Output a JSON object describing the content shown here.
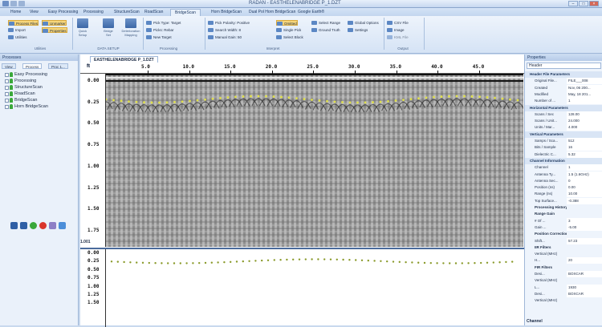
{
  "window": {
    "title": "RADAN - EASTHELENABRIDGE P_1.DZT"
  },
  "tabs": [
    "Home",
    "View",
    "Easy Processing",
    "Processing",
    "StructureScan",
    "RoadScan",
    "BridgeScan",
    "Horn BridgeScan",
    "Dual Pol Horn BridgeScan",
    "Google Earth®"
  ],
  "active_tab": "BridgeScan",
  "ribbon": {
    "file_group": {
      "items": [
        "Process Files",
        "Unmarker",
        "Import",
        "Properties",
        "Utilities"
      ],
      "label": "Utilities"
    },
    "data_setup": {
      "items": [
        "Quick Setup",
        "Bridge Set",
        "Deterioration Mapping"
      ],
      "label": "DATA SETUP"
    },
    "processing_group": {
      "items": [
        "Pick Type: Target",
        "Picks: Rebar",
        "New Target"
      ],
      "label": "Processing"
    },
    "picking_group": {
      "items": [
        "Pick Polarity: Positive",
        "Search Width: 8",
        "Manual Gain: 50",
        "Omitted",
        "Single Pick",
        "Select Block",
        "Select Range",
        "Ground Truth",
        "Global Options",
        "Settings",
        "CSV File",
        "Image",
        "KML File"
      ],
      "label": "Interpret",
      "label2": "Output"
    }
  },
  "left_panel": {
    "title": "Processes",
    "tabs": [
      "View",
      "Process",
      "Proc 1..."
    ],
    "tree": [
      "Easy Processing",
      "Processing",
      "StructureScan",
      "RoadScan",
      "BridgeScan",
      "Horn BridgeScan"
    ]
  },
  "document_tab": "EASTHELENABRIDGE P_1.DZT",
  "ruler": {
    "unit": "ft",
    "ticks": [
      "5.0",
      "10.0",
      "15.0",
      "20.0",
      "25.0",
      "30.0",
      "35.0",
      "40.0",
      "45.0"
    ]
  },
  "y_ticks": [
    "0.00",
    "0.25",
    "0.50",
    "0.75",
    "1.00",
    "1.25",
    "1.50",
    "1.75"
  ],
  "y_unit": "ft",
  "bottom_value": "1.001",
  "lower_y_ticks": [
    "0.00",
    "0.25",
    "0.50",
    "0.75",
    "1.00",
    "1.25",
    "1.50"
  ],
  "properties": {
    "title": "Properties",
    "dropdown": "Header",
    "rows": [
      {
        "type": "section",
        "k": "Header File Parameters"
      },
      {
        "k": "Original File...",
        "v": "FILE___008"
      },
      {
        "k": "Created",
        "v": "Nov, 06 200..."
      },
      {
        "k": "Modified",
        "v": "May, 18 201..."
      },
      {
        "k": "Number of ...",
        "v": "1"
      },
      {
        "type": "section",
        "k": "Horizontal Parameters"
      },
      {
        "k": "Scans / Sec",
        "v": "128.00"
      },
      {
        "k": "Scans / Unit...",
        "v": "24.000"
      },
      {
        "k": "Units / Mar...",
        "v": "4.000"
      },
      {
        "type": "section",
        "k": "Vertical Parameters"
      },
      {
        "k": "Samps / Sca...",
        "v": "512"
      },
      {
        "k": "Bits / Sample",
        "v": "16"
      },
      {
        "k": "Dielectric C...",
        "v": "5.32"
      },
      {
        "type": "section",
        "k": "Channel Information"
      },
      {
        "k": "Channel",
        "v": "1"
      },
      {
        "k": "Antenna Ty...",
        "v": "1.5 (1.6GHz)"
      },
      {
        "k": "Antenna Sec...",
        "v": "0"
      },
      {
        "k": "Position (ns)",
        "v": "0.00"
      },
      {
        "k": "Range (ns)",
        "v": "10.00"
      },
      {
        "k": "Top Surface...",
        "v": "-0.388"
      },
      {
        "type": "sub",
        "k": "Processing History"
      },
      {
        "type": "sub",
        "k": "Range Gain"
      },
      {
        "k": "# Of ...",
        "v": "3"
      },
      {
        "k": "Gain ...",
        "v": "-5.00"
      },
      {
        "type": "sub",
        "k": "Position Correction"
      },
      {
        "k": "Shift...",
        "v": "57.23"
      },
      {
        "type": "sub",
        "k": "IIR Filters"
      },
      {
        "k": "Vertical (MHz)",
        "v": ""
      },
      {
        "k": "H...",
        "v": "20"
      },
      {
        "type": "sub",
        "k": "FIR Filters"
      },
      {
        "k": "Desi...",
        "v": "BOXCAR"
      },
      {
        "k": "Vertical (MHz)",
        "v": ""
      },
      {
        "k": "L...",
        "v": "1930"
      },
      {
        "k": "Desi...",
        "v": "BOXCAR"
      },
      {
        "k": "Vertical (MHz)",
        "v": ""
      }
    ],
    "footer": "Channel"
  },
  "colors": {
    "accent": "#2d5b9a",
    "pick": "#e0e04a",
    "lower_pick": "#8a9a2a"
  }
}
